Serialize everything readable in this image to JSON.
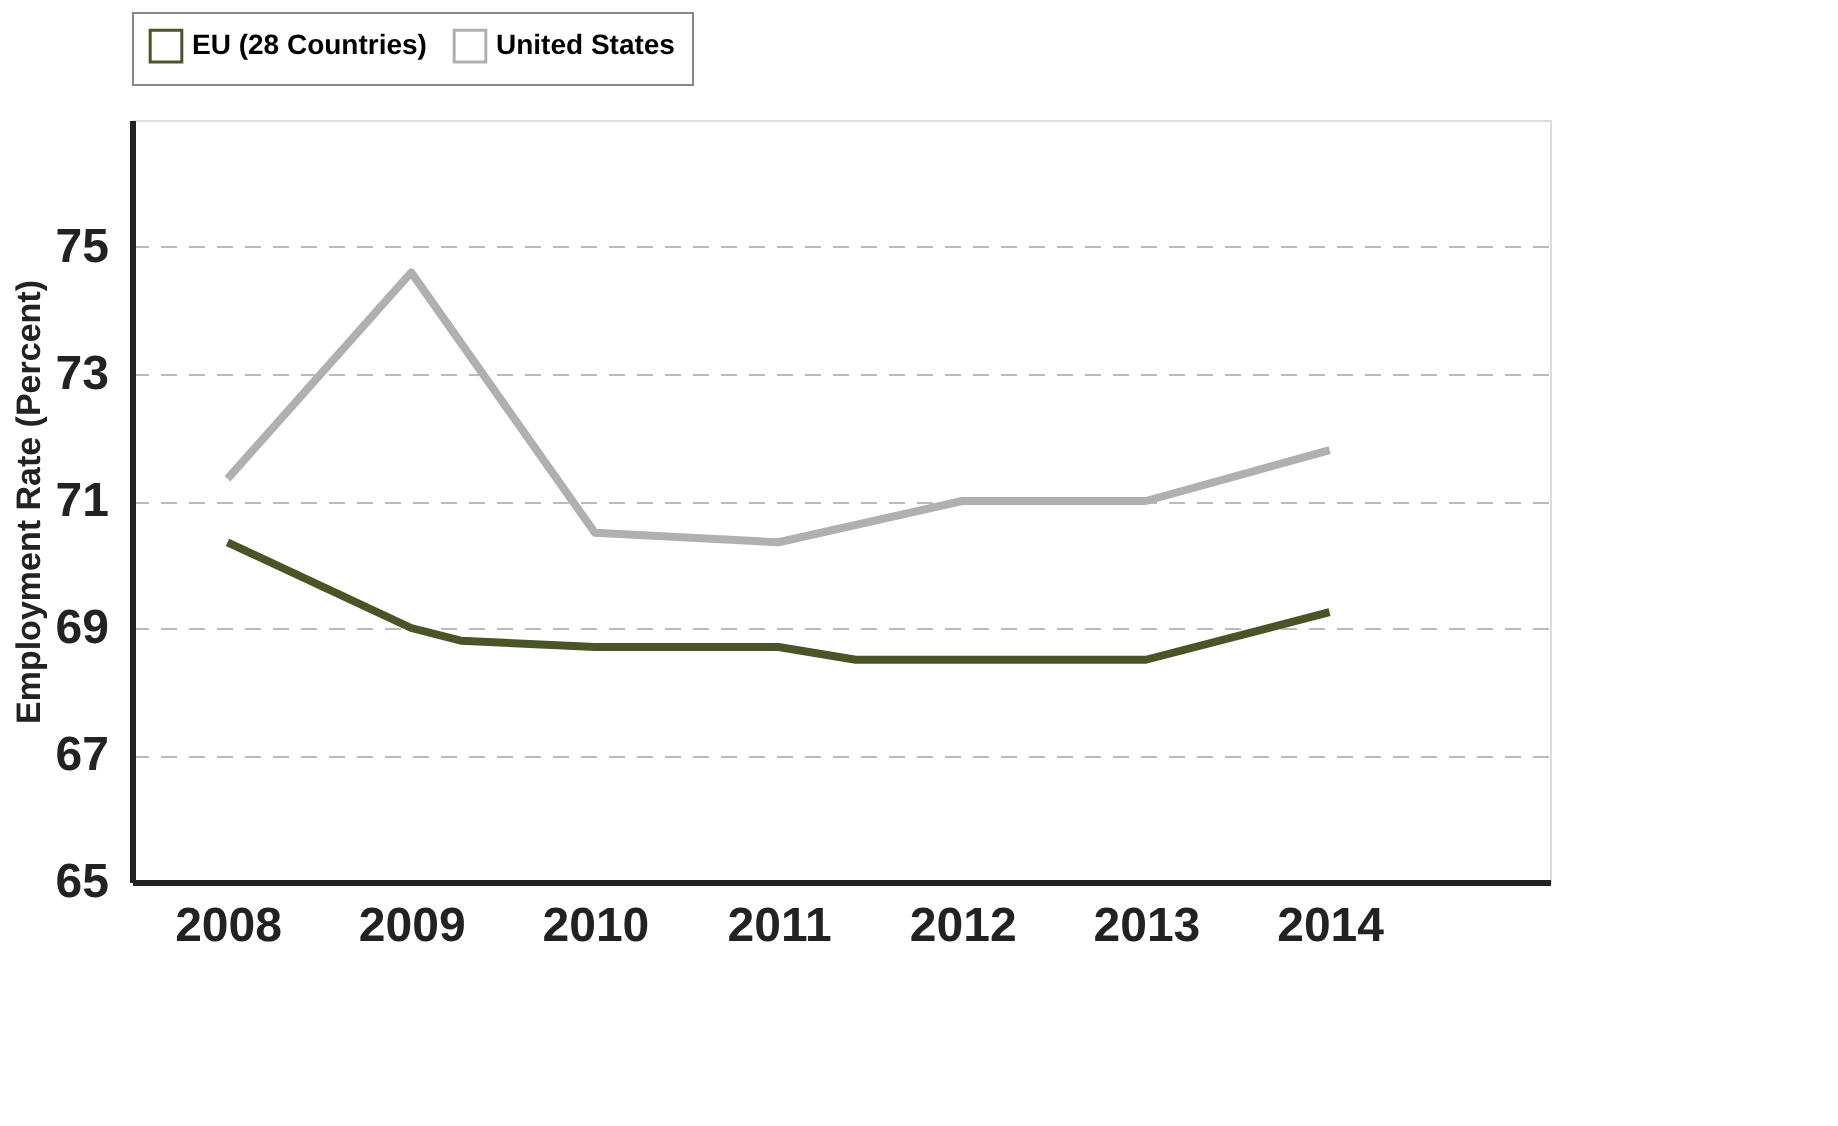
{
  "chart_data": {
    "type": "line",
    "ylabel": "Employment Rate (Percent)",
    "xlim": [
      2007.48,
      2015.2
    ],
    "xticks": [
      2008,
      2009,
      2010,
      2011,
      2012,
      2013,
      2014
    ],
    "ylim": [
      65,
      77
    ],
    "yticks": [
      65,
      67,
      69,
      71,
      73,
      75
    ],
    "grid": "y",
    "line_style": "solid",
    "marker": "none",
    "legend": "top",
    "series": [
      {
        "name": "EU (28 Countries)",
        "color": "#4a5527",
        "x": [
          2008,
          2009,
          2009.27,
          2010,
          2011,
          2011.42,
          2012,
          2013,
          2014
        ],
        "values": [
          70.35,
          69.0,
          68.8,
          68.7,
          68.7,
          68.5,
          68.5,
          68.5,
          69.25
        ]
      },
      {
        "name": "United States",
        "color": "#b0b0b0",
        "x": [
          2008,
          2009,
          2010,
          2011,
          2012,
          2013,
          2014
        ],
        "values": [
          71.35,
          74.6,
          70.5,
          70.35,
          71.0,
          71.0,
          71.8
        ]
      }
    ]
  }
}
